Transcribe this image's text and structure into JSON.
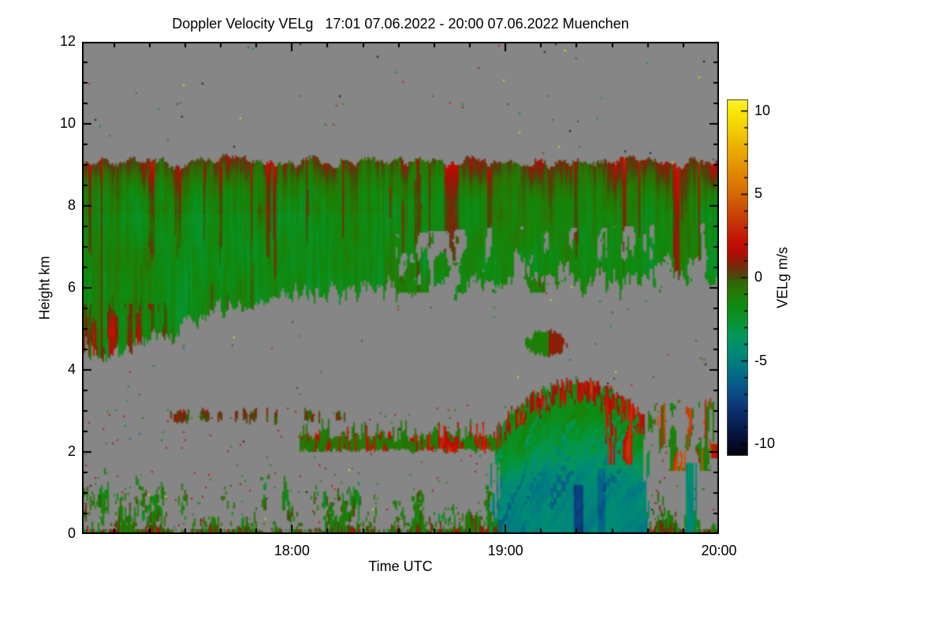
{
  "title": "Doppler Velocity VELg   17:01 07.06.2022 - 20:00 07.06.2022 Muenchen",
  "plot": {
    "x_axis": {
      "label": "Time UTC",
      "start_min": 0,
      "end_min": 179,
      "major_ticks": [
        {
          "min": 59,
          "label": "18:00"
        },
        {
          "min": 119,
          "label": "19:00"
        },
        {
          "min": 179,
          "label": "20:00"
        }
      ],
      "first_minor_min": 9,
      "minor_step_min": 10
    },
    "y_axis": {
      "label": "Height km",
      "min": 0,
      "max": 12,
      "major_ticks": [
        {
          "v": 0,
          "label": "0"
        },
        {
          "v": 2,
          "label": "2"
        },
        {
          "v": 4,
          "label": "4"
        },
        {
          "v": 6,
          "label": "6"
        },
        {
          "v": 8,
          "label": "8"
        },
        {
          "v": 10,
          "label": "10"
        },
        {
          "v": 12,
          "label": "12"
        }
      ],
      "minor_step": 0.5
    }
  },
  "colorbar": {
    "label": "VELg m/s",
    "min": -10.7,
    "max": 10.7,
    "major_ticks": [
      {
        "v": 10,
        "label": "10"
      },
      {
        "v": 5,
        "label": "5"
      },
      {
        "v": 0,
        "label": "0"
      },
      {
        "v": -5,
        "label": "-5"
      },
      {
        "v": -10,
        "label": "-10"
      }
    ],
    "minor_step": 1
  },
  "colors": {
    "page_bg": "#ffffff",
    "nodata": "#868686",
    "axis": "#000000",
    "colormap_stops": [
      [
        -10.7,
        3,
        3,
        14
      ],
      [
        -9.5,
        6,
        18,
        58
      ],
      [
        -8.5,
        10,
        38,
        96
      ],
      [
        -7.5,
        12,
        60,
        125
      ],
      [
        -6.5,
        8,
        88,
        138
      ],
      [
        -5.5,
        2,
        115,
        132
      ],
      [
        -4.5,
        0,
        138,
        120
      ],
      [
        -3.5,
        2,
        150,
        92
      ],
      [
        -2.5,
        7,
        148,
        46
      ],
      [
        -1.5,
        18,
        136,
        12
      ],
      [
        -0.75,
        40,
        118,
        4
      ],
      [
        -0.25,
        50,
        102,
        5
      ],
      [
        0.0,
        66,
        78,
        10
      ],
      [
        0.35,
        96,
        58,
        10
      ],
      [
        0.8,
        128,
        36,
        8
      ],
      [
        1.5,
        178,
        12,
        6
      ],
      [
        2.2,
        198,
        16,
        4
      ],
      [
        3.0,
        196,
        42,
        8
      ],
      [
        4.0,
        203,
        74,
        6
      ],
      [
        5.0,
        212,
        104,
        2
      ],
      [
        6.5,
        226,
        142,
        0
      ],
      [
        8.0,
        238,
        180,
        0
      ],
      [
        9.0,
        244,
        208,
        0
      ],
      [
        10.0,
        248,
        232,
        2
      ],
      [
        10.7,
        250,
        244,
        60
      ]
    ]
  },
  "chart_data": {
    "type": "heatmap",
    "title": "Doppler Velocity VELg",
    "site": "Muenchen",
    "time_start": "17:01 07.06.2022",
    "time_end": "20:00 07.06.2022",
    "xlabel": "Time UTC",
    "ylabel": "Height km",
    "x_tick_labels": [
      "18:00",
      "19:00",
      "20:00"
    ],
    "y_range_km": [
      0,
      12
    ],
    "value_name": "VELg",
    "value_unit": "m/s",
    "value_range": [
      -10.7,
      10.7
    ],
    "no_data_color": "#868686",
    "regions": [
      {
        "name": "upper-cloud-deck",
        "t_min": [
          0,
          179
        ],
        "top_km": 9.07,
        "base_points": [
          [
            0,
            4.4
          ],
          [
            10,
            4.45
          ],
          [
            22,
            4.8
          ],
          [
            36,
            5.35
          ],
          [
            50,
            5.7
          ],
          [
            62,
            5.85
          ],
          [
            80,
            5.95
          ],
          [
            95,
            6.05
          ],
          [
            110,
            6.15
          ],
          [
            125,
            6.2
          ],
          [
            140,
            6.15
          ],
          [
            155,
            6.2
          ],
          [
            168,
            6.25
          ],
          [
            179,
            6.3
          ]
        ],
        "v_mean": -1.35,
        "v_top_max": 1.6,
        "ragged_after_min": 87
      },
      {
        "name": "cloud-base-wisps",
        "t_min": [
          88,
          142
        ],
        "h_km": [
          5.9,
          6.6
        ],
        "v_mean": -1.0
      },
      {
        "name": "mid-cloud-blob",
        "t_min": [
          125,
          136
        ],
        "h_km": [
          4.35,
          4.95
        ],
        "center_t_min": 130.5,
        "center_km": 4.65,
        "v_left": -0.8,
        "v_right": 0.5
      },
      {
        "name": "midlevel-dash-streak",
        "t_min": [
          25,
          76
        ],
        "h_km": [
          2.72,
          3.05
        ],
        "v_mean": 0.3
      },
      {
        "name": "shear-band",
        "t_min": [
          61,
          117
        ],
        "h_km": [
          2.03,
          2.42
        ],
        "v_green": -1.1,
        "v_red": 1.4,
        "red_emphasis_t_min": [
          97,
          114
        ]
      },
      {
        "name": "precip-plume",
        "t_min": [
          114,
          160.5
        ],
        "peak_t_min": 139,
        "top_km_at_peak": 3.72,
        "v_top_mottle": 0.9,
        "v_core": -4.6,
        "v_dark_streaks": -7.0,
        "dark_streak_t_min": [
          139.5,
          146
        ]
      },
      {
        "name": "right-streak-band",
        "t_min": [
          159,
          177.5
        ],
        "h_km": [
          1.55,
          3.35
        ],
        "v_red": 2.3,
        "v_green": -1.4,
        "teal_descender_t_min": [
          169.3,
          172.6
        ],
        "v_teal": -3.6
      },
      {
        "name": "right-edge-red-blob",
        "t_min": [
          176.5,
          179
        ],
        "h_km": [
          1.85,
          2.2
        ],
        "v": 2.3
      },
      {
        "name": "boundary-layer",
        "t_min": [
          0,
          179
        ],
        "h_km": [
          0,
          1.7
        ],
        "v_mean": -1.2,
        "surface_red_below_km": 0.35,
        "v_surface_max": 3.2
      }
    ]
  }
}
